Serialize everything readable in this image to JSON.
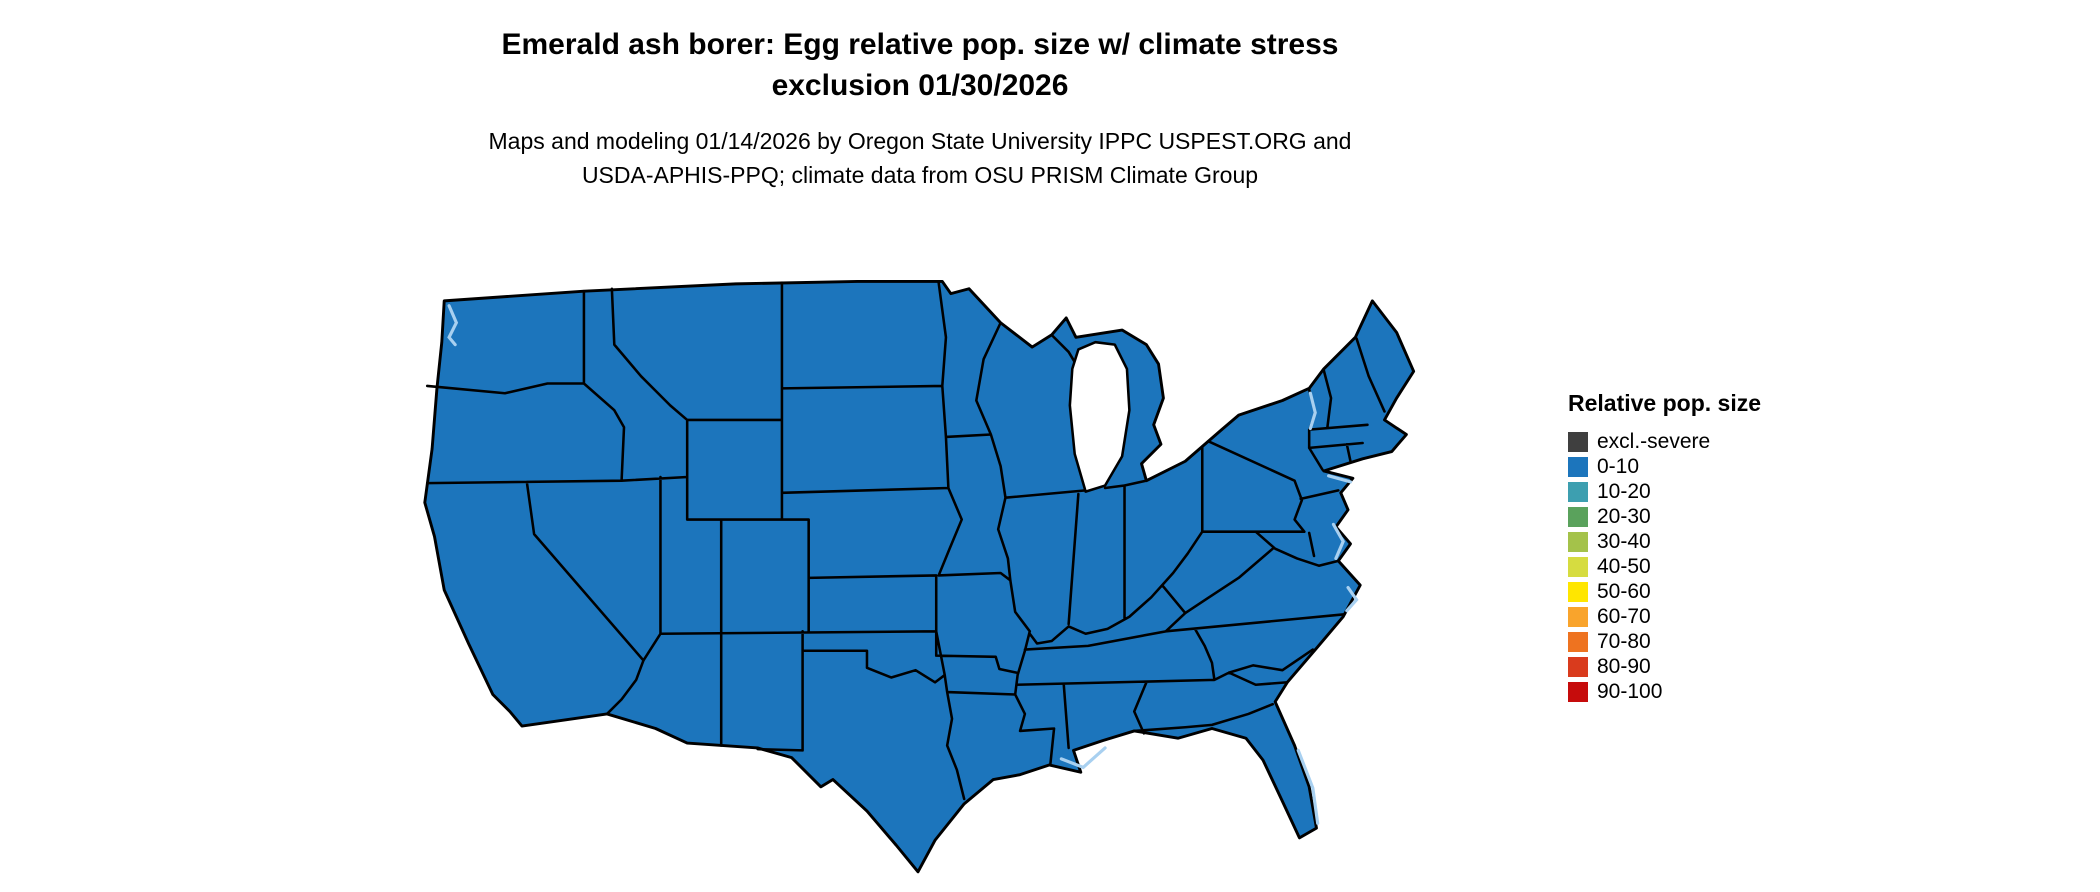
{
  "title": {
    "line1": "Emerald ash borer: Egg relative pop. size w/ climate stress",
    "line2": "exclusion 01/30/2026"
  },
  "subtitle": {
    "line1": "Maps and modeling 01/14/2026 by Oregon State University IPPC USPEST.ORG and",
    "line2": "USDA-APHIS-PPQ; climate data from OSU PRISM Climate Group"
  },
  "legend": {
    "title": "Relative pop. size",
    "items": [
      {
        "label": "excl.-severe",
        "color": "#3f3f3f"
      },
      {
        "label": "0-10",
        "color": "#1c75bc"
      },
      {
        "label": "10-20",
        "color": "#3d9fb0"
      },
      {
        "label": "20-30",
        "color": "#5aa25c"
      },
      {
        "label": "30-40",
        "color": "#a4c24a"
      },
      {
        "label": "40-50",
        "color": "#d6dc40"
      },
      {
        "label": "50-60",
        "color": "#ffe600"
      },
      {
        "label": "60-70",
        "color": "#f9a42c"
      },
      {
        "label": "70-80",
        "color": "#ee7320"
      },
      {
        "label": "80-90",
        "color": "#d93b1d"
      },
      {
        "label": "90-100",
        "color": "#c60c0c"
      }
    ]
  },
  "map": {
    "area": "Contiguous United States choropleth",
    "uniform_class": "0-10",
    "fill_color": "#1c75bc",
    "border_color": "#000000",
    "water_color": "#ffffff",
    "water_accent_color": "#a8d0f0"
  }
}
